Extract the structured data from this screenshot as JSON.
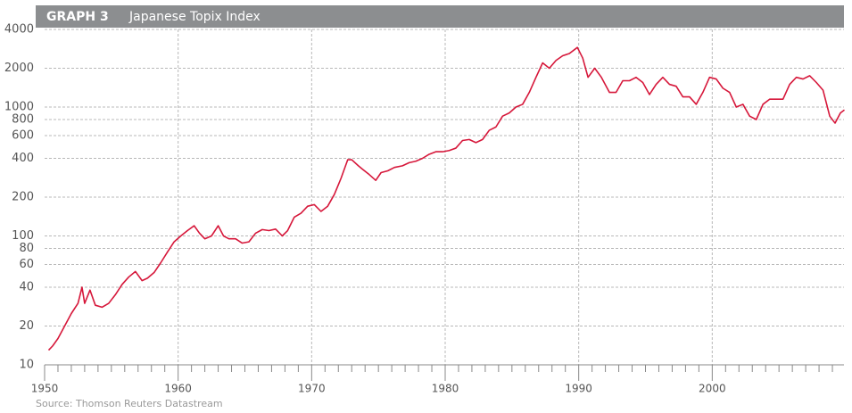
{
  "chart_data": {
    "type": "line",
    "title": "GRAPH 3",
    "subtitle": "Japanese Topix Index",
    "source": "Source: Thomson Reuters Datastream",
    "log_scale": true,
    "grid": true,
    "xlim": [
      1950,
      2010
    ],
    "xticks": [
      1950,
      1960,
      1970,
      1980,
      1990,
      2000
    ],
    "xminorticks": [
      1951,
      1952,
      1953,
      1954,
      1955,
      1956,
      1957,
      1958,
      1959,
      1961,
      1962,
      1963,
      1964,
      1965,
      1966,
      1967,
      1968,
      1969,
      1971,
      1972,
      1973,
      1974,
      1975,
      1976,
      1977,
      1978,
      1979,
      1981,
      1982,
      1983,
      1984,
      1985,
      1986,
      1987,
      1988,
      1989,
      1991,
      1992,
      1993,
      1994,
      1995,
      1996,
      1997,
      1998,
      1999,
      2001,
      2002,
      2003,
      2004,
      2005,
      2006,
      2007,
      2008,
      2009
    ],
    "ylim": [
      10,
      4000
    ],
    "yticks": [
      10,
      20,
      40,
      60,
      80,
      100,
      200,
      400,
      600,
      800,
      1000,
      2000,
      4000
    ],
    "x": [
      1950.3,
      1950.6,
      1951.0,
      1951.5,
      1952.0,
      1952.5,
      1952.8,
      1953.0,
      1953.4,
      1953.8,
      1954.3,
      1954.8,
      1955.3,
      1955.8,
      1956.3,
      1956.8,
      1957.3,
      1957.7,
      1958.2,
      1958.7,
      1959.2,
      1959.7,
      1960.2,
      1960.7,
      1961.2,
      1961.6,
      1962.0,
      1962.5,
      1963.0,
      1963.4,
      1963.8,
      1964.3,
      1964.8,
      1965.3,
      1965.8,
      1966.3,
      1966.8,
      1967.3,
      1967.8,
      1968.2,
      1968.7,
      1969.2,
      1969.7,
      1970.2,
      1970.7,
      1971.2,
      1971.7,
      1972.2,
      1972.7,
      1973.0,
      1973.5,
      1973.8,
      1974.3,
      1974.8,
      1975.2,
      1975.7,
      1976.2,
      1976.8,
      1977.3,
      1977.8,
      1978.3,
      1978.8,
      1979.3,
      1979.8,
      1980.3,
      1980.8,
      1981.3,
      1981.8,
      1982.3,
      1982.8,
      1983.3,
      1983.8,
      1984.3,
      1984.8,
      1985.3,
      1985.8,
      1986.3,
      1986.8,
      1987.3,
      1987.8,
      1988.3,
      1988.8,
      1989.3,
      1989.9,
      1990.3,
      1990.7,
      1991.2,
      1991.7,
      1992.3,
      1992.8,
      1993.3,
      1993.8,
      1994.3,
      1994.8,
      1995.3,
      1995.8,
      1996.3,
      1996.8,
      1997.3,
      1997.8,
      1998.3,
      1998.8,
      1999.3,
      1999.8,
      2000.3,
      2000.8,
      2001.3,
      2001.8,
      2002.3,
      2002.8,
      2003.3,
      2003.8,
      2004.3,
      2004.8,
      2005.3,
      2005.8,
      2006.3,
      2006.8,
      2007.3,
      2007.8,
      2008.3,
      2008.8,
      2009.2,
      2009.6,
      2009.9
    ],
    "series": [
      {
        "name": "Topix",
        "color": "#d6173a",
        "values": [
          13,
          14,
          16,
          20,
          25,
          30,
          40,
          30,
          38,
          29,
          28,
          30,
          35,
          42,
          48,
          53,
          45,
          47,
          52,
          62,
          75,
          90,
          100,
          110,
          120,
          105,
          95,
          100,
          120,
          100,
          95,
          95,
          88,
          90,
          105,
          112,
          110,
          113,
          100,
          110,
          140,
          150,
          170,
          175,
          155,
          170,
          210,
          280,
          390,
          390,
          350,
          330,
          300,
          270,
          310,
          320,
          340,
          350,
          370,
          380,
          400,
          430,
          450,
          450,
          460,
          480,
          550,
          560,
          530,
          560,
          660,
          700,
          850,
          900,
          1000,
          1050,
          1300,
          1700,
          2200,
          2000,
          2300,
          2500,
          2600,
          2900,
          2400,
          1700,
          2000,
          1700,
          1300,
          1300,
          1600,
          1600,
          1700,
          1550,
          1250,
          1500,
          1700,
          1500,
          1450,
          1200,
          1200,
          1050,
          1300,
          1700,
          1650,
          1400,
          1300,
          1000,
          1050,
          850,
          800,
          1050,
          1150,
          1150,
          1150,
          1500,
          1700,
          1650,
          1750,
          1550,
          1350,
          850,
          750,
          900,
          950
        ]
      }
    ]
  }
}
